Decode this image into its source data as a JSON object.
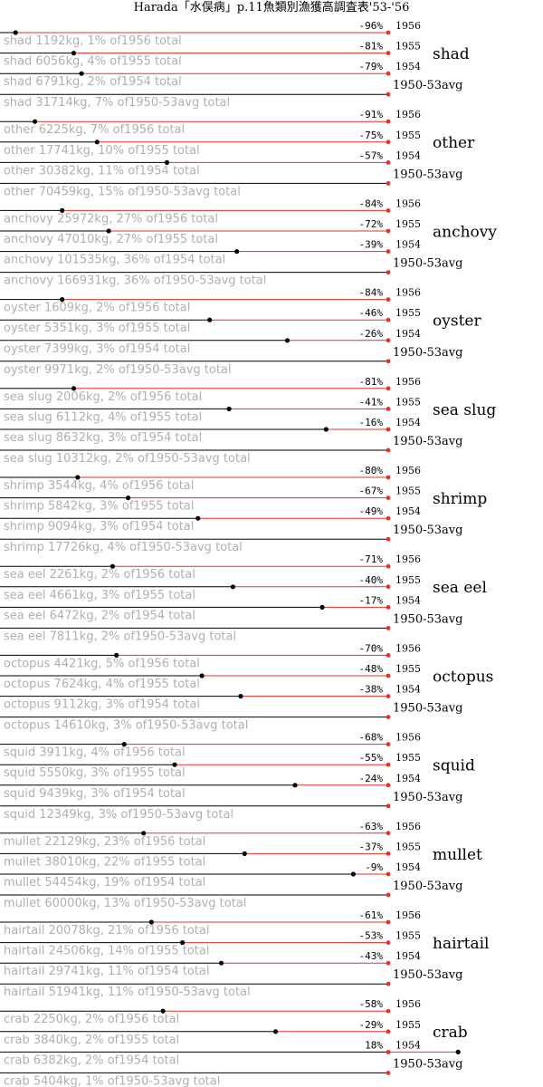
{
  "chart_data": {
    "type": "bar",
    "title": "Harada「水俣病」p.11魚類別漁獲高調査表'53-'56",
    "baseline_label": "1950-53avg",
    "year_labels": [
      "1956",
      "1955",
      "1954"
    ],
    "unit": "kg",
    "groups": [
      {
        "name": "shad",
        "pcts": [
          "-96%",
          "-81%",
          "-79%"
        ],
        "changes": [
          -96,
          -81,
          -79
        ],
        "rows": [
          "shad 1192kg, 1% of1956 total",
          "shad 6056kg, 4% of1955 total",
          "shad 6791kg, 2% of1954 total",
          "shad 31714kg, 7% of1950-53avg total"
        ],
        "kg": [
          1192,
          6056,
          6791,
          31714
        ],
        "share_pct": [
          1,
          4,
          2,
          7
        ]
      },
      {
        "name": "other",
        "pcts": [
          "-91%",
          "-75%",
          "-57%"
        ],
        "changes": [
          -91,
          -75,
          -57
        ],
        "rows": [
          "other 6225kg, 7% of1956 total",
          "other 17741kg, 10% of1955 total",
          "other 30382kg, 11% of1954 total",
          "other 70459kg, 15% of1950-53avg total"
        ],
        "kg": [
          6225,
          17741,
          30382,
          70459
        ],
        "share_pct": [
          7,
          10,
          11,
          15
        ]
      },
      {
        "name": "anchovy",
        "pcts": [
          "-84%",
          "-72%",
          "-39%"
        ],
        "changes": [
          -84,
          -72,
          -39
        ],
        "rows": [
          "anchovy 25972kg, 27% of1956 total",
          "anchovy 47010kg, 27% of1955 total",
          "anchovy 101535kg, 36% of1954 total",
          "anchovy 166931kg, 36% of1950-53avg total"
        ],
        "kg": [
          25972,
          47010,
          101535,
          166931
        ],
        "share_pct": [
          27,
          27,
          36,
          36
        ]
      },
      {
        "name": "oyster",
        "pcts": [
          "-84%",
          "-46%",
          "-26%"
        ],
        "changes": [
          -84,
          -46,
          -26
        ],
        "rows": [
          "oyster 1609kg, 2% of1956 total",
          "oyster 5351kg, 3% of1955 total",
          "oyster 7399kg, 3% of1954 total",
          "oyster 9971kg, 2% of1950-53avg total"
        ],
        "kg": [
          1609,
          5351,
          7399,
          9971
        ],
        "share_pct": [
          2,
          3,
          3,
          2
        ]
      },
      {
        "name": "sea slug",
        "pcts": [
          "-81%",
          "-41%",
          "-16%"
        ],
        "changes": [
          -81,
          -41,
          -16
        ],
        "rows": [
          "sea slug 2006kg, 2% of1956 total",
          "sea slug 6112kg, 4% of1955 total",
          "sea slug 8632kg, 3% of1954 total",
          "sea slug 10312kg, 2% of1950-53avg total"
        ],
        "kg": [
          2006,
          6112,
          8632,
          10312
        ],
        "share_pct": [
          2,
          4,
          3,
          2
        ]
      },
      {
        "name": "shrimp",
        "pcts": [
          "-80%",
          "-67%",
          "-49%"
        ],
        "changes": [
          -80,
          -67,
          -49
        ],
        "rows": [
          "shrimp 3544kg, 4% of1956 total",
          "shrimp 5842kg, 3% of1955 total",
          "shrimp 9094kg, 3% of1954 total",
          "shrimp 17726kg, 4% of1950-53avg total"
        ],
        "kg": [
          3544,
          5842,
          9094,
          17726
        ],
        "share_pct": [
          4,
          3,
          3,
          4
        ]
      },
      {
        "name": "sea eel",
        "pcts": [
          "-71%",
          "-40%",
          "-17%"
        ],
        "changes": [
          -71,
          -40,
          -17
        ],
        "rows": [
          "sea eel 2261kg, 2% of1956 total",
          "sea eel 4661kg, 3% of1955 total",
          "sea eel 6472kg, 2% of1954 total",
          "sea eel 7811kg, 2% of1950-53avg total"
        ],
        "kg": [
          2261,
          4661,
          6472,
          7811
        ],
        "share_pct": [
          2,
          3,
          2,
          2
        ]
      },
      {
        "name": "octopus",
        "pcts": [
          "-70%",
          "-48%",
          "-38%"
        ],
        "changes": [
          -70,
          -48,
          -38
        ],
        "rows": [
          "octopus 4421kg, 5% of1956 total",
          "octopus 7624kg, 4% of1955 total",
          "octopus 9112kg, 3% of1954 total",
          "octopus 14610kg, 3% of1950-53avg total"
        ],
        "kg": [
          4421,
          7624,
          9112,
          14610
        ],
        "share_pct": [
          5,
          4,
          3,
          3
        ]
      },
      {
        "name": "squid",
        "pcts": [
          "-68%",
          "-55%",
          "-24%"
        ],
        "changes": [
          -68,
          -55,
          -24
        ],
        "rows": [
          "squid 3911kg, 4% of1956 total",
          "squid 5550kg, 3% of1955 total",
          "squid 9439kg, 3% of1954 total",
          "squid 12349kg, 3% of1950-53avg total"
        ],
        "kg": [
          3911,
          5550,
          9439,
          12349
        ],
        "share_pct": [
          4,
          3,
          3,
          3
        ]
      },
      {
        "name": "mullet",
        "pcts": [
          "-63%",
          "-37%",
          "-9%"
        ],
        "changes": [
          -63,
          -37,
          -9
        ],
        "rows": [
          "mullet 22129kg, 23% of1956 total",
          "mullet 38010kg, 22% of1955 total",
          "mullet 54454kg, 19% of1954 total",
          "mullet 60000kg, 13% of1950-53avg total"
        ],
        "kg": [
          22129,
          38010,
          54454,
          60000
        ],
        "share_pct": [
          23,
          22,
          19,
          13
        ]
      },
      {
        "name": "hairtail",
        "pcts": [
          "-61%",
          "-53%",
          "-43%"
        ],
        "changes": [
          -61,
          -53,
          -43
        ],
        "rows": [
          "hairtail 20078kg, 21% of1956 total",
          "hairtail 24506kg, 14% of1955 total",
          "hairtail 29741kg, 11% of1954 total",
          "hairtail 51941kg, 11% of1950-53avg total"
        ],
        "kg": [
          20078,
          24506,
          29741,
          51941
        ],
        "share_pct": [
          21,
          14,
          11,
          11
        ]
      },
      {
        "name": "crab",
        "pcts": [
          "-58%",
          "-29%",
          "18%"
        ],
        "changes": [
          -58,
          -29,
          18
        ],
        "rows": [
          "crab 2250kg, 2% of1956 total",
          "crab 3840kg, 2% of1955 total",
          "crab 6382kg, 2% of1954 total",
          "crab 5404kg, 1% of1950-53avg total"
        ],
        "kg": [
          2250,
          3840,
          6382,
          5404
        ],
        "share_pct": [
          2,
          2,
          2,
          1
        ]
      }
    ]
  }
}
